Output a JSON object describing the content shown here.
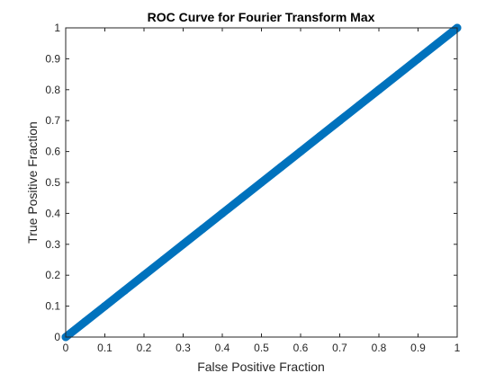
{
  "chart_data": {
    "type": "line",
    "title": "ROC Curve for Fourier Transform Max",
    "xlabel": "False Positive Fraction",
    "ylabel": "True Positive Fraction",
    "xlim": [
      0,
      1
    ],
    "ylim": [
      0,
      1
    ],
    "x_ticks": [
      0,
      0.1,
      0.2,
      0.3,
      0.4,
      0.5,
      0.6,
      0.7,
      0.8,
      0.9,
      1
    ],
    "y_ticks": [
      0,
      0.1,
      0.2,
      0.3,
      0.4,
      0.5,
      0.6,
      0.7,
      0.8,
      0.9,
      1
    ],
    "x_tick_labels": [
      "0",
      "0.1",
      "0.2",
      "0.3",
      "0.4",
      "0.5",
      "0.6",
      "0.7",
      "0.8",
      "0.9",
      "1"
    ],
    "y_tick_labels": [
      "0",
      "0.1",
      "0.2",
      "0.3",
      "0.4",
      "0.5",
      "0.6",
      "0.7",
      "0.8",
      "0.9",
      "1"
    ],
    "grid": false,
    "legend": "none",
    "series": [
      {
        "color": "#0072bd",
        "marker": "circle",
        "x": [
          0,
          0.05,
          0.1,
          0.15,
          0.2,
          0.25,
          0.3,
          0.35,
          0.4,
          0.45,
          0.5,
          0.55,
          0.6,
          0.65,
          0.7,
          0.75,
          0.8,
          0.85,
          0.9,
          0.95,
          1
        ],
        "y": [
          0,
          0.05,
          0.1,
          0.15,
          0.2,
          0.25,
          0.3,
          0.35,
          0.4,
          0.45,
          0.5,
          0.55,
          0.6,
          0.65,
          0.7,
          0.75,
          0.8,
          0.85,
          0.9,
          0.95,
          1
        ]
      }
    ]
  }
}
